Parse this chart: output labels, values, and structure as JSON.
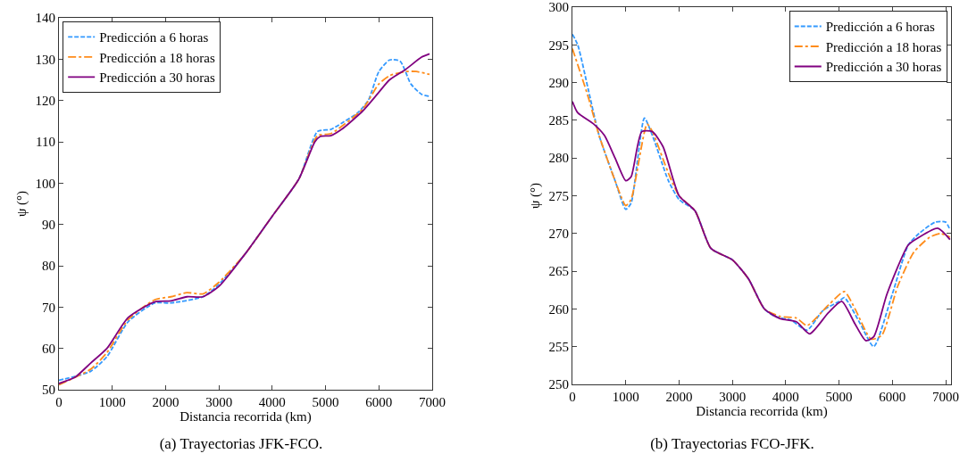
{
  "chart_data": [
    {
      "type": "line",
      "xlabel": "Distancia recorrida (km)",
      "ylabel": "ψ (°)",
      "xlim": [
        0,
        7000
      ],
      "ylim": [
        50,
        140
      ],
      "xticks": [
        0,
        1000,
        2000,
        3000,
        4000,
        5000,
        6000,
        7000
      ],
      "yticks": [
        50,
        60,
        70,
        80,
        90,
        100,
        110,
        120,
        130,
        140
      ],
      "grid": false,
      "legend": "top left",
      "annotations": [
        "(a) Trayectorias JFK-FCO."
      ],
      "series": [
        {
          "name": "Predicción a 6 horas",
          "color": "#3399ff",
          "line_style": "dashed",
          "x": [
            0,
            300,
            600,
            900,
            1300,
            1800,
            2100,
            2700,
            3000,
            3500,
            4000,
            4500,
            4850,
            5100,
            5300,
            5600,
            5800,
            6000,
            6200,
            6400,
            6600,
            6800,
            6950
          ],
          "values": [
            52.3,
            53.2,
            54.5,
            58,
            66.5,
            71,
            71,
            72.5,
            75.5,
            83,
            92,
            101,
            112.5,
            113,
            114.5,
            117,
            120,
            127,
            129.8,
            129.5,
            124,
            121.5,
            121
          ]
        },
        {
          "name": "Predicción a 18 horas",
          "color": "#ff8c1a",
          "line_style": "dashdot",
          "x": [
            0,
            300,
            600,
            900,
            1300,
            1800,
            2100,
            2400,
            2700,
            3000,
            3500,
            4000,
            4500,
            4850,
            5100,
            5700,
            6000,
            6200,
            6500,
            6700,
            6950
          ],
          "values": [
            51.2,
            53,
            55,
            59,
            67,
            71.8,
            72.5,
            73.5,
            73.2,
            76,
            83,
            92,
            101,
            111.5,
            112,
            118,
            124,
            126,
            127,
            127,
            126.3
          ]
        },
        {
          "name": "Predicción a 30 horas",
          "color": "#800080",
          "line_style": "solid",
          "x": [
            0,
            300,
            600,
            900,
            1300,
            1800,
            2100,
            2400,
            2700,
            3000,
            3500,
            4000,
            4500,
            4800,
            4900,
            5100,
            5300,
            5700,
            6000,
            6200,
            6500,
            6800,
            6950
          ],
          "values": [
            51.5,
            53,
            56.5,
            60,
            67.5,
            71.3,
            71.5,
            72.5,
            72.5,
            75,
            83,
            92,
            101,
            110,
            111.3,
            111.5,
            113,
            117.5,
            122,
            125,
            127.5,
            130.5,
            131.3
          ]
        }
      ]
    },
    {
      "type": "line",
      "xlabel": "Distancia recorrida (km)",
      "ylabel": "ψ (°)",
      "xlim": [
        0,
        7100
      ],
      "ylim": [
        250,
        300
      ],
      "xticks": [
        0,
        1000,
        2000,
        3000,
        4000,
        5000,
        6000,
        7000
      ],
      "yticks": [
        250,
        255,
        260,
        265,
        270,
        275,
        280,
        285,
        290,
        295,
        300
      ],
      "grid": false,
      "legend": "top right",
      "annotations": [
        "(b) Trayectorias FCO-JFK."
      ],
      "series": [
        {
          "name": "Predicción a 6 horas",
          "color": "#3399ff",
          "line_style": "dashed",
          "x": [
            0,
            100,
            300,
            500,
            800,
            1000,
            1100,
            1350,
            1500,
            1800,
            2000,
            2300,
            2600,
            3000,
            3300,
            3600,
            3800,
            4100,
            4400,
            4700,
            5000,
            5100,
            5400,
            5650,
            6000,
            6300,
            6500,
            6800,
            7000,
            7080
          ],
          "values": [
            296.4,
            295,
            289,
            283,
            277,
            273.2,
            274,
            285.3,
            283,
            277,
            274.5,
            273,
            268,
            266.5,
            264,
            260,
            259,
            258.5,
            257.2,
            259.8,
            261,
            261.5,
            258,
            255,
            262,
            268.5,
            270,
            271.5,
            271.5,
            270.5
          ]
        },
        {
          "name": "Predicción a 18 horas",
          "color": "#ff8c1a",
          "line_style": "dashdot",
          "x": [
            0,
            300,
            500,
            800,
            1000,
            1100,
            1400,
            1500,
            1800,
            2000,
            2300,
            2600,
            3000,
            3300,
            3600,
            3900,
            4200,
            4400,
            4800,
            5100,
            5300,
            5600,
            5800,
            6100,
            6400,
            6700,
            6900,
            7080
          ],
          "values": [
            294.5,
            288,
            283,
            277,
            273.7,
            274.5,
            284.5,
            283.5,
            278,
            275,
            273,
            268,
            266.5,
            264,
            260,
            259,
            258.8,
            257.8,
            260.5,
            262.3,
            260,
            256,
            256.5,
            263,
            267.5,
            269.5,
            270,
            269.5
          ]
        },
        {
          "name": "Predicción a 30 horas",
          "color": "#800080",
          "line_style": "solid",
          "x": [
            0,
            100,
            400,
            600,
            800,
            1000,
            1100,
            1300,
            1500,
            1700,
            2000,
            2300,
            2600,
            3000,
            3300,
            3600,
            3900,
            4200,
            4450,
            4800,
            5050,
            5300,
            5500,
            5650,
            5900,
            6300,
            6500,
            6850,
            7080
          ],
          "values": [
            287.5,
            286,
            284.5,
            283,
            280,
            277,
            277.5,
            283.5,
            283.5,
            281.5,
            275,
            273,
            268,
            266.5,
            264,
            260,
            258.7,
            258.3,
            256.7,
            259.5,
            261,
            258,
            255.8,
            256.3,
            262,
            268.5,
            269.5,
            270.7,
            269.2
          ]
        }
      ]
    }
  ]
}
